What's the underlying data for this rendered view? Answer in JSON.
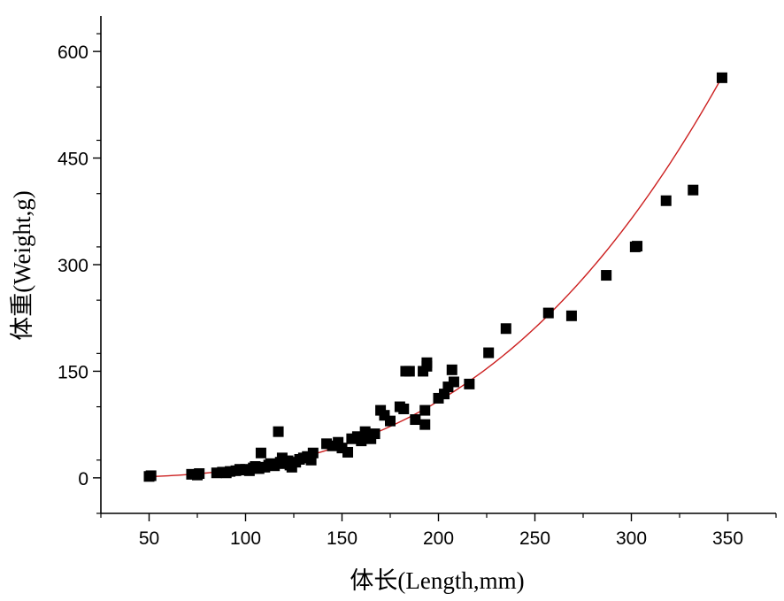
{
  "chart_data": {
    "type": "scatter",
    "title": "",
    "xlabel": "体长(Length,mm)",
    "ylabel": "体重(Weight,g)",
    "xlim": [
      25,
      375
    ],
    "ylim": [
      -50,
      650
    ],
    "xticks": [
      50,
      100,
      150,
      200,
      250,
      300,
      350
    ],
    "yticks": [
      0,
      150,
      300,
      450,
      600
    ],
    "grid": false,
    "legend": "none",
    "series": [
      {
        "kind": "scatter",
        "marker": "square",
        "color": "#000000",
        "points": [
          [
            50,
            2
          ],
          [
            51,
            3
          ],
          [
            72,
            5
          ],
          [
            75,
            4
          ],
          [
            76,
            6
          ],
          [
            85,
            7
          ],
          [
            88,
            8
          ],
          [
            90,
            7
          ],
          [
            92,
            9
          ],
          [
            95,
            10
          ],
          [
            97,
            12
          ],
          [
            98,
            11
          ],
          [
            100,
            12
          ],
          [
            102,
            10
          ],
          [
            104,
            14
          ],
          [
            105,
            16
          ],
          [
            107,
            13
          ],
          [
            108,
            35
          ],
          [
            110,
            15
          ],
          [
            112,
            18
          ],
          [
            113,
            20
          ],
          [
            115,
            17
          ],
          [
            117,
            65
          ],
          [
            118,
            22
          ],
          [
            119,
            28
          ],
          [
            120,
            20
          ],
          [
            122,
            24
          ],
          [
            123,
            18
          ],
          [
            124,
            15
          ],
          [
            126,
            22
          ],
          [
            128,
            26
          ],
          [
            130,
            28
          ],
          [
            132,
            30
          ],
          [
            134,
            25
          ],
          [
            135,
            35
          ],
          [
            142,
            48
          ],
          [
            145,
            45
          ],
          [
            148,
            50
          ],
          [
            150,
            42
          ],
          [
            153,
            36
          ],
          [
            155,
            55
          ],
          [
            158,
            58
          ],
          [
            160,
            52
          ],
          [
            162,
            65
          ],
          [
            165,
            55
          ],
          [
            167,
            62
          ],
          [
            170,
            95
          ],
          [
            172,
            88
          ],
          [
            175,
            80
          ],
          [
            180,
            100
          ],
          [
            182,
            97
          ],
          [
            183,
            150
          ],
          [
            185,
            150
          ],
          [
            188,
            82
          ],
          [
            192,
            150
          ],
          [
            193,
            75
          ],
          [
            193,
            95
          ],
          [
            194,
            162
          ],
          [
            194,
            157
          ],
          [
            200,
            112
          ],
          [
            203,
            118
          ],
          [
            205,
            128
          ],
          [
            207,
            152
          ],
          [
            208,
            135
          ],
          [
            216,
            132
          ],
          [
            226,
            176
          ],
          [
            235,
            210
          ],
          [
            257,
            232
          ],
          [
            269,
            228
          ],
          [
            287,
            285
          ],
          [
            302,
            325
          ],
          [
            303,
            326
          ],
          [
            318,
            390
          ],
          [
            332,
            405
          ],
          [
            347,
            563
          ]
        ]
      },
      {
        "kind": "line",
        "color": "#cc1f1f",
        "model": "power",
        "a": 1.35e-05,
        "b": 3,
        "x_range": [
          50,
          347
        ]
      }
    ]
  }
}
